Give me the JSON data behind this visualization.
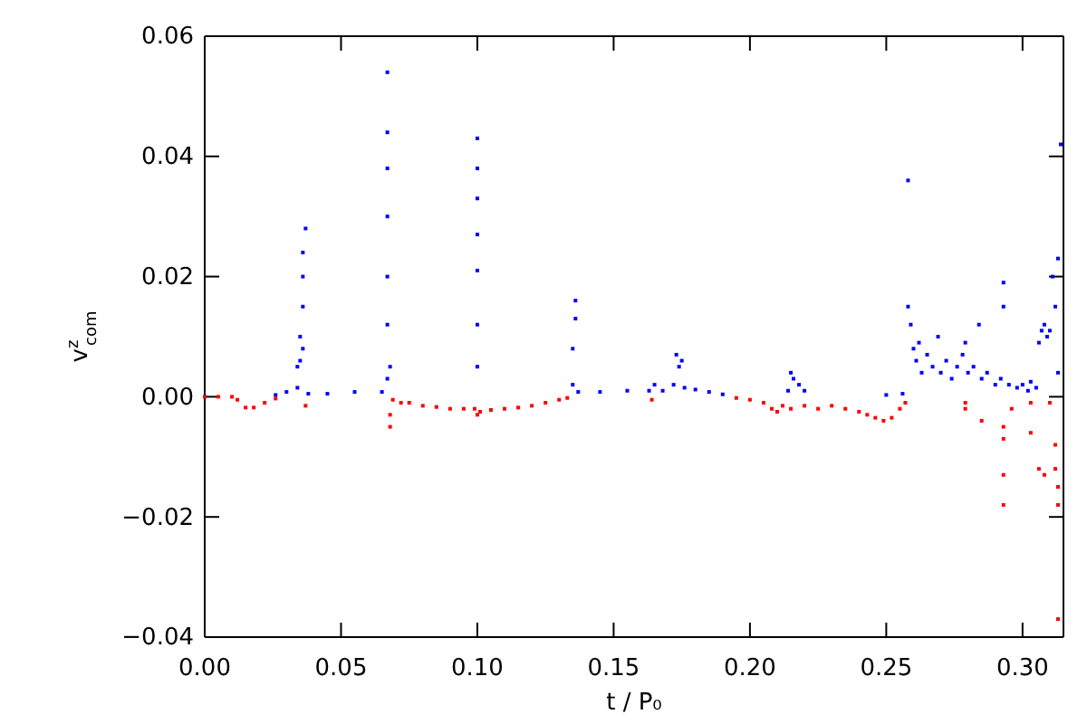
{
  "chart_data": {
    "type": "scatter",
    "xlabel": "t / P₀",
    "ylabel": "v$^{z}$$_{com}$",
    "marker": "square",
    "grid": false,
    "xlim": [
      0,
      0.315
    ],
    "ylim": [
      -0.04,
      0.06
    ],
    "xticks": [
      {
        "value": 0,
        "label": "0.00"
      },
      {
        "value": 0.05,
        "label": "0.05"
      },
      {
        "value": 0.1,
        "label": "0.10"
      },
      {
        "value": 0.15,
        "label": "0.15"
      },
      {
        "value": 0.2,
        "label": "0.20"
      },
      {
        "value": 0.25,
        "label": "0.25"
      },
      {
        "value": 0.3,
        "label": "0.30"
      }
    ],
    "yticks": [
      {
        "value": -0.04,
        "label": "−0.04"
      },
      {
        "value": -0.02,
        "label": "−0.02"
      },
      {
        "value": 0,
        "label": "0.00"
      },
      {
        "value": 0.02,
        "label": "0.02"
      },
      {
        "value": 0.04,
        "label": "0.04"
      },
      {
        "value": 0.06,
        "label": "0.06"
      }
    ],
    "series": [
      {
        "color": "#ff0000",
        "x": [
          0,
          0.005,
          0.01,
          0.012,
          0.015,
          0.018,
          0.022,
          0.026,
          0.037,
          0.068,
          0.068,
          0.069,
          0.072,
          0.075,
          0.08,
          0.085,
          0.09,
          0.095,
          0.099,
          0.1,
          0.101,
          0.105,
          0.11,
          0.115,
          0.12,
          0.125,
          0.13,
          0.133,
          0.164,
          0.195,
          0.2,
          0.205,
          0.208,
          0.21,
          0.212,
          0.215,
          0.22,
          0.225,
          0.23,
          0.235,
          0.24,
          0.243,
          0.246,
          0.249,
          0.252,
          0.255,
          0.257,
          0.279,
          0.279,
          0.285,
          0.293,
          0.293,
          0.293,
          0.293,
          0.296,
          0.303,
          0.303,
          0.306,
          0.308,
          0.31,
          0.312,
          0.312,
          0.313,
          0.313,
          0.313
        ],
        "values": [
          0,
          0,
          0,
          -0.0005,
          -0.0018,
          -0.0018,
          -0.001,
          -0.0003,
          -0.0015,
          -0.005,
          -0.003,
          -0.0005,
          -0.001,
          -0.001,
          -0.0015,
          -0.0017,
          -0.002,
          -0.002,
          -0.002,
          -0.003,
          -0.0025,
          -0.0022,
          -0.002,
          -0.0018,
          -0.0015,
          -0.001,
          -0.0005,
          -0.0002,
          -0.0005,
          -0.0002,
          -0.0005,
          -0.001,
          -0.002,
          -0.0025,
          -0.0015,
          -0.002,
          -0.0015,
          -0.002,
          -0.0015,
          -0.002,
          -0.0025,
          -0.003,
          -0.0035,
          -0.004,
          -0.0035,
          -0.002,
          -0.001,
          -0.001,
          -0.002,
          -0.004,
          -0.005,
          -0.007,
          -0.013,
          -0.018,
          -0.002,
          -0.001,
          -0.006,
          -0.012,
          -0.013,
          -0.001,
          -0.008,
          -0.012,
          -0.015,
          -0.018,
          -0.037
        ]
      },
      {
        "color": "#0000ff",
        "x": [
          0.026,
          0.03,
          0.034,
          0.034,
          0.035,
          0.035,
          0.036,
          0.036,
          0.036,
          0.036,
          0.037,
          0.038,
          0.045,
          0.055,
          0.065,
          0.067,
          0.067,
          0.067,
          0.067,
          0.067,
          0.067,
          0.067,
          0.068,
          0.1,
          0.1,
          0.1,
          0.1,
          0.1,
          0.1,
          0.1,
          0.135,
          0.135,
          0.136,
          0.136,
          0.137,
          0.145,
          0.155,
          0.163,
          0.165,
          0.168,
          0.172,
          0.173,
          0.174,
          0.175,
          0.176,
          0.18,
          0.185,
          0.19,
          0.214,
          0.215,
          0.216,
          0.218,
          0.22,
          0.25,
          0.256,
          0.258,
          0.258,
          0.259,
          0.26,
          0.261,
          0.262,
          0.263,
          0.265,
          0.267,
          0.269,
          0.27,
          0.272,
          0.274,
          0.276,
          0.278,
          0.279,
          0.28,
          0.282,
          0.284,
          0.285,
          0.287,
          0.29,
          0.292,
          0.293,
          0.293,
          0.295,
          0.298,
          0.3,
          0.302,
          0.303,
          0.305,
          0.306,
          0.307,
          0.308,
          0.309,
          0.31,
          0.311,
          0.312,
          0.313,
          0.313,
          0.314
        ],
        "values": [
          0.0003,
          0.0008,
          0.0015,
          0.005,
          0.01,
          0.006,
          0.008,
          0.015,
          0.02,
          0.024,
          0.028,
          0.0005,
          0.0005,
          0.0008,
          0.0008,
          0.003,
          0.012,
          0.02,
          0.03,
          0.038,
          0.044,
          0.054,
          0.005,
          0.005,
          0.012,
          0.021,
          0.027,
          0.033,
          0.038,
          0.043,
          0.002,
          0.008,
          0.013,
          0.016,
          0.0008,
          0.0008,
          0.001,
          0.001,
          0.002,
          0.001,
          0.002,
          0.007,
          0.005,
          0.006,
          0.0015,
          0.0012,
          0.0008,
          0.0004,
          0.001,
          0.004,
          0.003,
          0.002,
          0.001,
          0.0003,
          0.0005,
          0.036,
          0.015,
          0.012,
          0.008,
          0.006,
          0.009,
          0.004,
          0.007,
          0.005,
          0.01,
          0.004,
          0.006,
          0.003,
          0.005,
          0.007,
          0.009,
          0.004,
          0.005,
          0.012,
          0.003,
          0.004,
          0.002,
          0.003,
          0.019,
          0.015,
          0.002,
          0.0015,
          0.002,
          0.001,
          0.0025,
          0.0015,
          0.009,
          0.011,
          0.012,
          0.01,
          0.011,
          0.02,
          0.015,
          0.023,
          0.004,
          0.042
        ]
      }
    ]
  }
}
